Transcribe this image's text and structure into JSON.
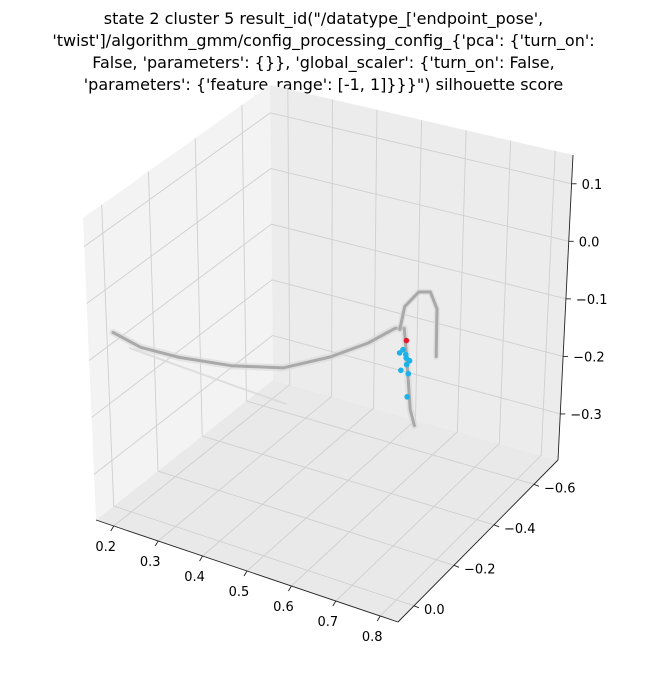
{
  "title_lines": [
    "state 2 cluster 5 result_id(\"/datatype_['endpoint_pose',",
    "'twist']/algorithm_gmm/config_processing_config_{'pca': {'turn_on':",
    "False, 'parameters': {}}, 'global_scaler': {'turn_on': False,",
    "'parameters': {'feature_range': [-1, 1]}}}\") silhouette score"
  ],
  "chart_data": {
    "type": "scatter",
    "projection": "3d",
    "title": "state 2 cluster 5 result_id(\"/datatype_['endpoint_pose', 'twist']/algorithm_gmm/config_processing_config_{'pca': {'turn_on': False, 'parameters': {}}, 'global_scaler': {'turn_on': False, 'parameters': {'feature_range': [-1, 1]}}}\") silhouette score",
    "grid": true,
    "x_ticks": [
      "0.2",
      "0.3",
      "0.4",
      "0.5",
      "0.6",
      "0.7",
      "0.8"
    ],
    "y_ticks": [
      "−0.6",
      "−0.4",
      "−0.2",
      "0.0"
    ],
    "z_ticks": [
      "−0.3",
      "−0.2",
      "−0.1",
      "0.0",
      "0.1"
    ],
    "xlim": [
      0.16,
      0.84
    ],
    "ylim": [
      -0.72,
      0.08
    ],
    "zlim": [
      -0.38,
      0.15
    ],
    "colors": {
      "trajectory": "#a9a9a9",
      "faint_trajectory": "#d8d8d8",
      "cluster": "#1ab2e8",
      "highlight": "#e8182c",
      "pane": "#f2f2f2",
      "grid": "#cfcfcf"
    },
    "trajectory_points": [
      {
        "x": 0.2,
        "y": 0.05,
        "z": -0.05
      },
      {
        "x": 0.25,
        "y": 0.03,
        "z": -0.07
      },
      {
        "x": 0.32,
        "y": 0.0,
        "z": -0.08
      },
      {
        "x": 0.42,
        "y": -0.03,
        "z": -0.08
      },
      {
        "x": 0.52,
        "y": -0.06,
        "z": -0.07
      },
      {
        "x": 0.61,
        "y": -0.09,
        "z": -0.04
      },
      {
        "x": 0.68,
        "y": -0.12,
        "z": -0.01
      },
      {
        "x": 0.73,
        "y": -0.14,
        "z": 0.02
      },
      {
        "x": 0.745,
        "y": -0.15,
        "z": 0.02
      },
      {
        "x": 0.75,
        "y": -0.15,
        "z": -0.02
      },
      {
        "x": 0.75,
        "y": -0.16,
        "z": -0.07
      },
      {
        "x": 0.755,
        "y": -0.16,
        "z": -0.12
      },
      {
        "x": 0.76,
        "y": -0.17,
        "z": -0.15
      }
    ],
    "upper_loop_points": [
      {
        "x": 0.74,
        "y": -0.14,
        "z": 0.02
      },
      {
        "x": 0.76,
        "y": -0.12,
        "z": 0.07
      },
      {
        "x": 0.8,
        "y": -0.1,
        "z": 0.11
      },
      {
        "x": 0.83,
        "y": -0.09,
        "z": 0.12
      },
      {
        "x": 0.84,
        "y": -0.1,
        "z": 0.09
      },
      {
        "x": 0.835,
        "y": -0.11,
        "z": 0.04
      },
      {
        "x": 0.83,
        "y": -0.12,
        "z": 0.0
      }
    ],
    "faint_tail_points": [
      {
        "x": 0.21,
        "y": 0.0,
        "z": -0.09
      },
      {
        "x": 0.25,
        "y": -0.15,
        "z": -0.16
      },
      {
        "x": 0.29,
        "y": -0.3,
        "z": -0.23
      },
      {
        "x": 0.33,
        "y": -0.45,
        "z": -0.3
      }
    ],
    "cluster_points": [
      {
        "x": 0.74,
        "y": -0.14,
        "z": -0.02
      },
      {
        "x": 0.745,
        "y": -0.145,
        "z": -0.015
      },
      {
        "x": 0.75,
        "y": -0.15,
        "z": -0.03
      },
      {
        "x": 0.752,
        "y": -0.148,
        "z": -0.04
      },
      {
        "x": 0.748,
        "y": -0.152,
        "z": -0.025
      },
      {
        "x": 0.755,
        "y": -0.155,
        "z": -0.035
      },
      {
        "x": 0.742,
        "y": -0.142,
        "z": -0.05
      },
      {
        "x": 0.75,
        "y": -0.16,
        "z": -0.06
      },
      {
        "x": 0.748,
        "y": -0.16,
        "z": -0.1
      }
    ],
    "highlight_points": [
      {
        "x": 0.75,
        "y": -0.15,
        "z": 0.0
      }
    ]
  }
}
